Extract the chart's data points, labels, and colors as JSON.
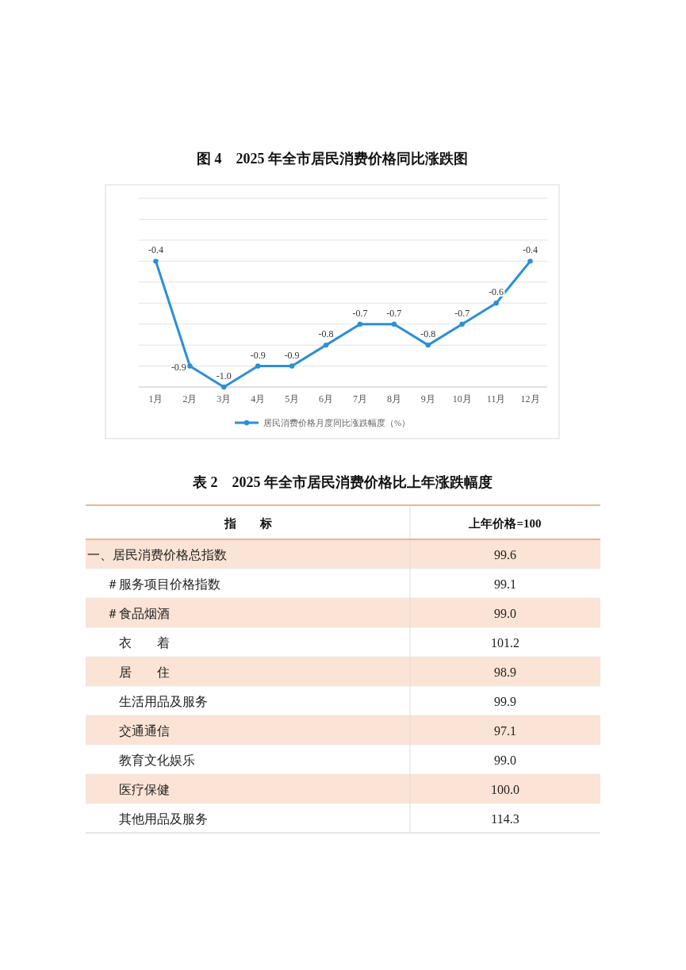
{
  "chart_data": [
    {
      "type": "line",
      "title": "图 4　2025 年全市居民消费价格同比涨跌图",
      "categories": [
        "1月",
        "2月",
        "3月",
        "4月",
        "5月",
        "6月",
        "7月",
        "8月",
        "9月",
        "10月",
        "11月",
        "12月"
      ],
      "series": [
        {
          "name": "居民消费价格月度同比涨跌幅度（%）",
          "color": "#2b8fd8",
          "values": [
            -0.4,
            -0.9,
            -1.0,
            -0.9,
            -0.9,
            -0.8,
            -0.7,
            -0.7,
            -0.8,
            -0.7,
            -0.6,
            -0.4
          ],
          "value_labels": [
            "-0.4",
            "-0.9",
            "-1.0",
            "-0.9",
            "-0.9",
            "-0.8",
            "-0.7",
            "-0.7",
            "-0.8",
            "-0.7",
            "-0.6",
            "-0.4"
          ]
        }
      ],
      "ylim": [
        -1.0,
        -0.1
      ],
      "yticks": [
        {
          "value": -1.0,
          "label": null
        },
        {
          "value": -0.9,
          "label": null
        },
        {
          "value": -0.8,
          "label": null
        },
        {
          "value": -0.7,
          "label": null
        },
        {
          "value": -0.6,
          "label": null
        },
        {
          "value": -0.5,
          "label": null
        },
        {
          "value": -0.4,
          "label": null
        },
        {
          "value": -0.3,
          "label": null
        },
        {
          "value": -0.2,
          "label": null
        },
        {
          "value": -0.1,
          "label": null
        }
      ],
      "grid": "y",
      "legend": "bottom",
      "marker": "circle",
      "line_style": "solid"
    },
    {
      "type": "other",
      "title": "表 2　2025 年全市居民消费价格比上年涨跌幅度",
      "annotations": [
        "指　　标",
        "上年价格=100"
      ],
      "categories": [
        "一、居民消费价格总指数",
        "＃服务项目价格指数",
        "＃食品烟酒",
        "衣　　着",
        "居　　住",
        "生活用品及服务",
        "交通通信",
        "教育文化娱乐",
        "医疗保健",
        "其他用品及服务"
      ],
      "values": [
        99.6,
        99.1,
        99.0,
        101.2,
        98.9,
        99.9,
        97.1,
        99.0,
        100.0,
        114.3
      ],
      "value_labels": [
        "99.6",
        "99.1",
        "99.0",
        "101.2",
        "98.9",
        "99.9",
        "97.1",
        "99.0",
        "100.0",
        "114.3"
      ]
    }
  ]
}
